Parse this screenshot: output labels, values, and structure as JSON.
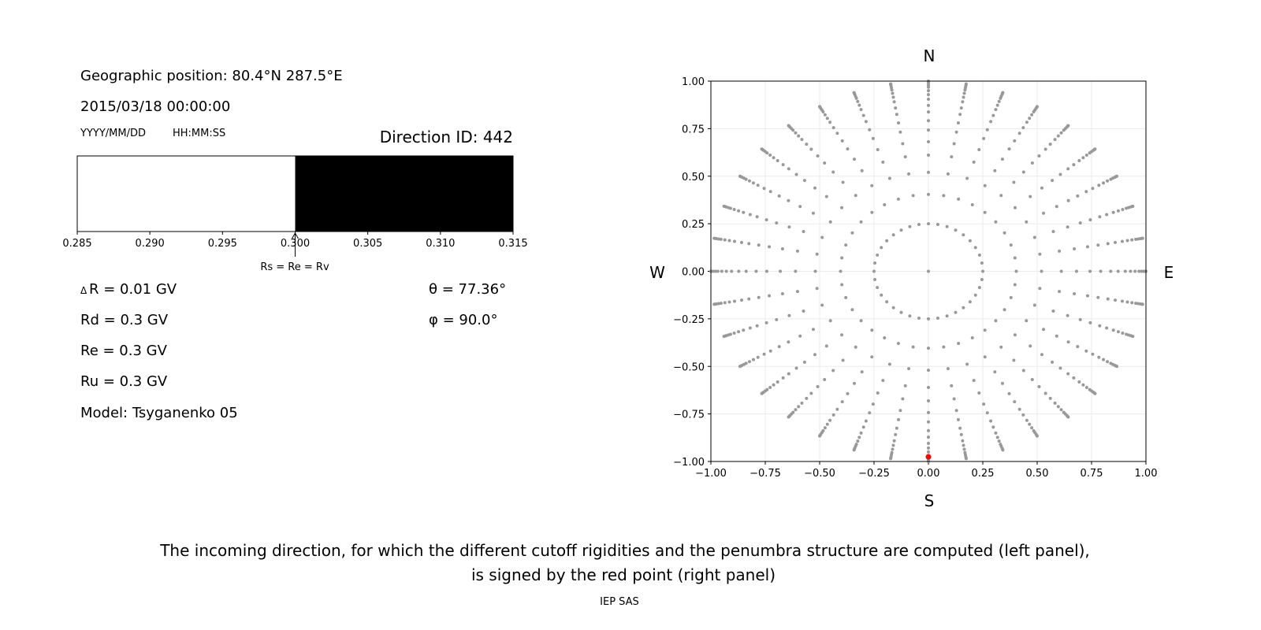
{
  "header": {
    "position": "Geographic position: 80.4°N 287.5°E",
    "datetime": "2015/03/18 00:00:00",
    "date_format": "YYYY/MM/DD",
    "time_format": "HH:MM:SS",
    "direction_id": "Direction ID: 442"
  },
  "params": {
    "delta_r_symbol": "Δ",
    "delta_r": "R = 0.01 GV",
    "rd": "Rd = 0.3 GV",
    "re": "Re = 0.3 GV",
    "ru": "Ru = 0.3 GV",
    "model": "Model: Tsyganenko 05",
    "theta": "θ = 77.36°",
    "phi": "φ = 90.0°"
  },
  "caption": {
    "line1": "The incoming direction, for which the different cutoff rigidities and the penumbra structure are computed (left panel),",
    "line2": "is signed by the red point (right panel)",
    "credit": "IEP SAS"
  },
  "colors": {
    "allowed": "#000000",
    "forbidden": "#ffffff",
    "directions": "#999999",
    "selected": "#ff0000"
  },
  "chart_data": [
    {
      "type": "bar",
      "description_label": "Rs = Re = Rv",
      "xlim": [
        0.285,
        0.315
      ],
      "xticks": [
        "0.285",
        "0.290",
        "0.295",
        "0.300",
        "0.305",
        "0.310",
        "0.315"
      ],
      "segments": [
        {
          "from": 0.285,
          "to": 0.3,
          "color": "#ffffff"
        },
        {
          "from": 0.3,
          "to": 0.315,
          "color": "#000000"
        }
      ],
      "marker_value": 0.3
    },
    {
      "type": "scatter",
      "xlim": [
        -1,
        1
      ],
      "ylim": [
        -1,
        1
      ],
      "grid": true,
      "xticks": [
        "−1.00",
        "−0.75",
        "−0.50",
        "−0.25",
        "0.00",
        "0.25",
        "0.50",
        "0.75",
        "1.00"
      ],
      "yticks": [
        "1.00",
        "0.75",
        "0.50",
        "0.25",
        "0.00",
        "−0.25",
        "−0.50",
        "−0.75",
        "−1.00"
      ],
      "compass": {
        "n": "N",
        "s": "S",
        "e": "E",
        "w": "W"
      },
      "points": {
        "center": [
          0,
          0
        ],
        "inner_ring_radius": 0.25,
        "inner_ring_azimuth_step_deg": 10,
        "spoke_azimuth_step_deg": 10,
        "spoke_radii": [
          0.404,
          0.52,
          0.611,
          0.681,
          0.743,
          0.792,
          0.838,
          0.872,
          0.905,
          0.929,
          0.95,
          0.968,
          0.979,
          0.99,
          0.997,
          1.0
        ]
      },
      "selected_point": [
        0,
        -0.976
      ]
    }
  ]
}
